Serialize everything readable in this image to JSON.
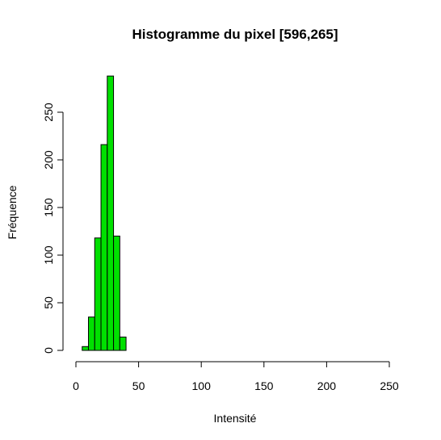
{
  "chart_data": {
    "type": "bar",
    "title": "Histogramme du pixel [596,265]",
    "xlabel": "Intensité",
    "ylabel": "Fréquence",
    "xlim": [
      0,
      250
    ],
    "ylim": [
      0,
      290
    ],
    "x_ticks": [
      0,
      50,
      100,
      150,
      200,
      250
    ],
    "y_ticks": [
      0,
      50,
      100,
      150,
      200,
      250
    ],
    "bin_width": 5,
    "bins": [
      {
        "start": 5,
        "end": 10,
        "value": 4
      },
      {
        "start": 10,
        "end": 15,
        "value": 35
      },
      {
        "start": 15,
        "end": 20,
        "value": 118
      },
      {
        "start": 20,
        "end": 25,
        "value": 216
      },
      {
        "start": 25,
        "end": 30,
        "value": 288
      },
      {
        "start": 30,
        "end": 35,
        "value": 120
      },
      {
        "start": 35,
        "end": 40,
        "value": 14
      }
    ],
    "bar_color": "#00e000",
    "bar_border": "#000000",
    "grid": false,
    "legend": "none"
  }
}
